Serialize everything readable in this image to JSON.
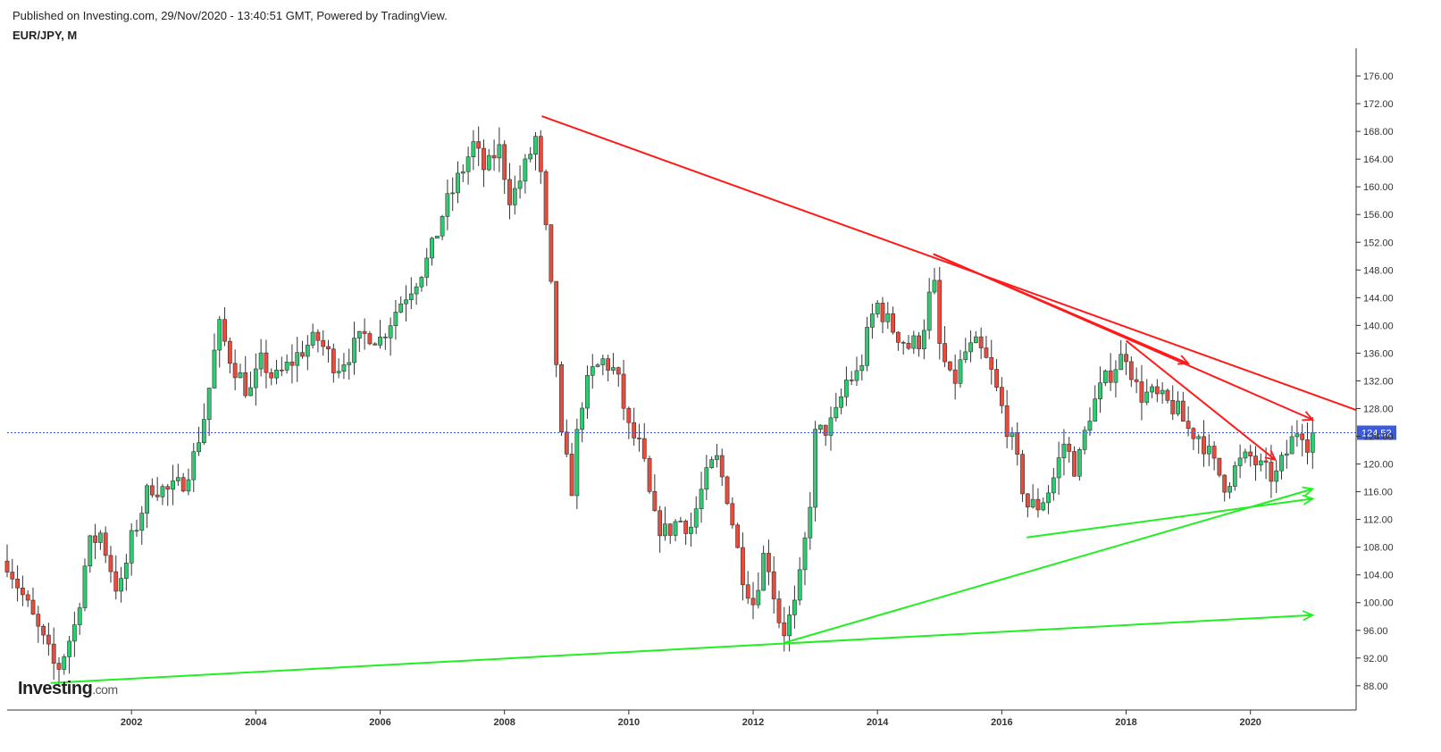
{
  "header": {
    "published": "Published on Investing.com, 29/Nov/2020 - 13:40:51 GMT, Powered by TradingView.",
    "symbol": "EUR/JPY, M"
  },
  "logo": {
    "main": "Investing",
    "suffix": ".com"
  },
  "colors": {
    "up": "#2ecc71",
    "down": "#e74c3c",
    "resistance": "#ff1a1a",
    "support": "#22ee22",
    "current_price_line": "#3b5bdb",
    "axis": "#333333"
  },
  "chart_data": {
    "type": "candlestick",
    "title": "EUR/JPY, M",
    "timeframe": "Monthly",
    "current_price": 124.52,
    "current_price_label": "124.52",
    "y_ticks": [
      "88.00",
      "92.00",
      "96.00",
      "100.00",
      "104.00",
      "108.00",
      "112.00",
      "116.00",
      "120.00",
      "124.00",
      "128.00",
      "132.00",
      "136.00",
      "140.00",
      "144.00",
      "148.00",
      "152.00",
      "156.00",
      "160.00",
      "164.00",
      "168.00",
      "172.00",
      "176.00"
    ],
    "x_ticks": [
      "2002",
      "2004",
      "2006",
      "2008",
      "2010",
      "2012",
      "2014",
      "2016",
      "2018",
      "2020"
    ],
    "ylim": [
      84.5,
      180.0
    ],
    "xlim": [
      2000.0,
      2021.7
    ],
    "price_path": [
      [
        2000.0,
        106
      ],
      [
        2000.4,
        98
      ],
      [
        2000.8,
        90
      ],
      [
        2001.1,
        97
      ],
      [
        2001.3,
        108
      ],
      [
        2001.5,
        110
      ],
      [
        2001.8,
        101
      ],
      [
        2002.0,
        109
      ],
      [
        2002.3,
        117
      ],
      [
        2002.6,
        116
      ],
      [
        2002.8,
        117
      ],
      [
        2003.0,
        121
      ],
      [
        2003.2,
        128
      ],
      [
        2003.4,
        140
      ],
      [
        2003.6,
        135
      ],
      [
        2003.9,
        130
      ],
      [
        2004.1,
        135
      ],
      [
        2004.3,
        132
      ],
      [
        2004.5,
        134
      ],
      [
        2004.8,
        137
      ],
      [
        2005.0,
        138
      ],
      [
        2005.3,
        134
      ],
      [
        2005.5,
        136
      ],
      [
        2005.8,
        139
      ],
      [
        2006.0,
        138
      ],
      [
        2006.3,
        143
      ],
      [
        2006.6,
        147
      ],
      [
        2006.8,
        150
      ],
      [
        2007.0,
        156
      ],
      [
        2007.3,
        162
      ],
      [
        2007.5,
        166
      ],
      [
        2007.7,
        162
      ],
      [
        2007.9,
        166
      ],
      [
        2008.1,
        158
      ],
      [
        2008.3,
        162
      ],
      [
        2008.5,
        167
      ],
      [
        2008.6,
        160
      ],
      [
        2008.8,
        140
      ],
      [
        2008.9,
        124
      ],
      [
        2009.1,
        116
      ],
      [
        2009.2,
        128
      ],
      [
        2009.4,
        133
      ],
      [
        2009.6,
        135
      ],
      [
        2009.8,
        133
      ],
      [
        2010.0,
        125
      ],
      [
        2010.2,
        122
      ],
      [
        2010.4,
        112
      ],
      [
        2010.6,
        110
      ],
      [
        2010.8,
        112
      ],
      [
        2011.0,
        111
      ],
      [
        2011.2,
        117
      ],
      [
        2011.4,
        121
      ],
      [
        2011.6,
        115
      ],
      [
        2011.8,
        105
      ],
      [
        2012.0,
        100
      ],
      [
        2012.2,
        108
      ],
      [
        2012.4,
        98
      ],
      [
        2012.5,
        96
      ],
      [
        2012.7,
        100
      ],
      [
        2012.9,
        113
      ],
      [
        2013.0,
        124
      ],
      [
        2013.3,
        126
      ],
      [
        2013.5,
        132
      ],
      [
        2013.7,
        133
      ],
      [
        2013.9,
        141
      ],
      [
        2014.0,
        143
      ],
      [
        2014.2,
        140
      ],
      [
        2014.5,
        137
      ],
      [
        2014.7,
        138
      ],
      [
        2014.9,
        147
      ],
      [
        2015.0,
        137
      ],
      [
        2015.2,
        131
      ],
      [
        2015.4,
        136
      ],
      [
        2015.6,
        137
      ],
      [
        2015.8,
        134
      ],
      [
        2016.0,
        128
      ],
      [
        2016.2,
        122
      ],
      [
        2016.4,
        114
      ],
      [
        2016.6,
        114
      ],
      [
        2016.8,
        117
      ],
      [
        2017.0,
        123
      ],
      [
        2017.2,
        119
      ],
      [
        2017.4,
        127
      ],
      [
        2017.6,
        131
      ],
      [
        2017.8,
        134
      ],
      [
        2018.0,
        136
      ],
      [
        2018.2,
        130
      ],
      [
        2018.4,
        130
      ],
      [
        2018.6,
        129
      ],
      [
        2018.8,
        128
      ],
      [
        2019.0,
        125
      ],
      [
        2019.2,
        124
      ],
      [
        2019.4,
        120
      ],
      [
        2019.6,
        117
      ],
      [
        2019.8,
        120
      ],
      [
        2020.0,
        121
      ],
      [
        2020.2,
        119
      ],
      [
        2020.4,
        118
      ],
      [
        2020.6,
        122
      ],
      [
        2020.8,
        126
      ],
      [
        2020.9,
        123
      ],
      [
        2021.0,
        124.52
      ]
    ],
    "resistance_lines": [
      {
        "from": [
          2008.6,
          170.2
        ],
        "to": [
          2021.7,
          127.8
        ]
      },
      {
        "from": [
          2014.9,
          150.3
        ],
        "to": [
          2019.0,
          134.5
        ]
      },
      {
        "from": [
          2014.9,
          150.3
        ],
        "to": [
          2021.0,
          126.4
        ]
      },
      {
        "from": [
          2018.0,
          137.8
        ],
        "to": [
          2020.4,
          120.6
        ]
      }
    ],
    "support_lines": [
      {
        "from": [
          2000.7,
          88.4
        ],
        "to": [
          2021.0,
          98.2
        ]
      },
      {
        "from": [
          2012.5,
          94.2
        ],
        "to": [
          2021.0,
          116.4
        ]
      },
      {
        "from": [
          2016.4,
          109.4
        ],
        "to": [
          2021.0,
          115.0
        ]
      }
    ]
  }
}
